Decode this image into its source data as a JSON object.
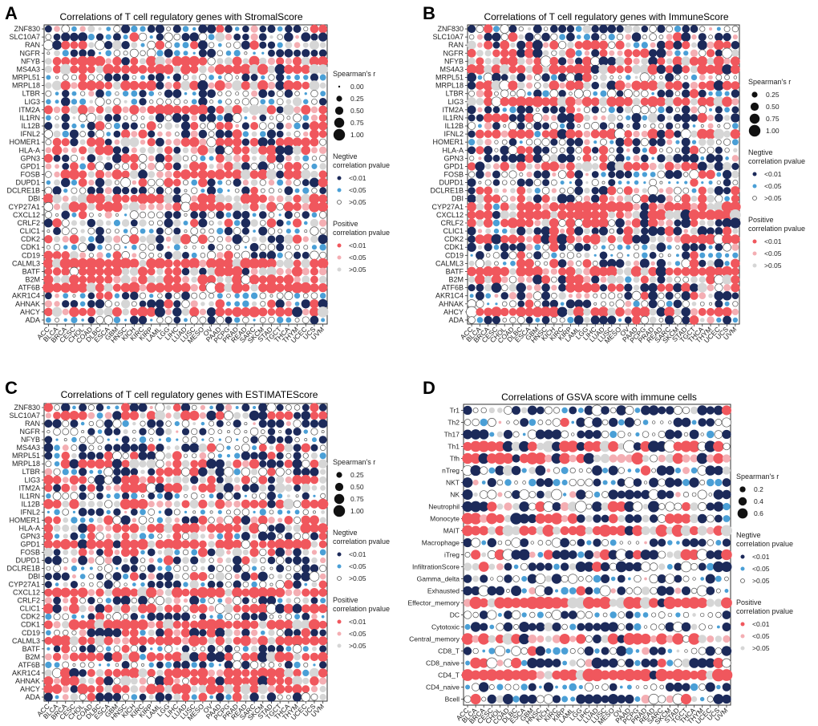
{
  "figure": {
    "panels": [
      {
        "letter": "A",
        "title": "Correlations of T cell regulatory genes with StromalScore"
      },
      {
        "letter": "B",
        "title": "Correlations of T cell regulatory genes with ImmuneScore"
      },
      {
        "letter": "C",
        "title": "Correlations of T cell regulatory genes with ESTIMATEScore"
      },
      {
        "letter": "D",
        "title": "Correlations of GSVA score with immune cells"
      }
    ],
    "legend": {
      "size_title": "Spearman's r",
      "neg_title_1": "Negtive",
      "neg_title_2": "correlation  pvalue",
      "pos_title_1": "Positive",
      "pos_title_2": "correlation  pvalue",
      "p_labels": [
        "<0.01",
        "<0.05",
        ">0.05"
      ]
    }
  },
  "chart_data": [
    {
      "type": "dotplot",
      "title": "Correlations of T cell regulatory genes with StromalScore",
      "x_categories": [
        "ACC",
        "BLCA",
        "BRCA",
        "CESC",
        "CHOL",
        "COAD",
        "DLBC",
        "ESCA",
        "GBM",
        "HNSC",
        "KICH",
        "KIRC",
        "KIRP",
        "LAML",
        "LGG",
        "LIHC",
        "LUAD",
        "LUSC",
        "MESO",
        "OV",
        "PAAD",
        "PCPG",
        "PRAD",
        "READ",
        "SARC",
        "SKCM",
        "STAD",
        "TGCT",
        "THCA",
        "THYM",
        "UCEC",
        "UCS",
        "UVM"
      ],
      "y_categories": [
        "ZNF830",
        "SLC10A7",
        "RAN",
        "NGFR",
        "NFYB",
        "MS4A3",
        "MRPL51",
        "MRPL18",
        "LTBR",
        "LIG3",
        "ITM2A",
        "IL1RN",
        "IL12B",
        "IFNL2",
        "HOMER1",
        "HLA-A",
        "GPN3",
        "GPD1",
        "FOSB",
        "DUPD1",
        "DCLRE1B",
        "DBI",
        "CYP27A1",
        "CXCL12",
        "CRLF2",
        "CLIC1",
        "CDK2",
        "CDK1",
        "CD19",
        "CALML3",
        "BATF",
        "B2M",
        "ATF6B",
        "AKR1C4",
        "AHNAK",
        "AHCY",
        "ADA"
      ],
      "size_breaks": [
        "0.00",
        "0.25",
        "0.50",
        "0.75",
        "1.00"
      ],
      "size_metric": "Spearman's r (absolute)",
      "color_encoding": "sign of correlation and p-value (<0.01, <0.05, >0.05)",
      "seed": 11
    },
    {
      "type": "dotplot",
      "title": "Correlations of T cell regulatory genes with ImmuneScore",
      "x_categories": [
        "ACC",
        "BLCA",
        "BRCA",
        "CESC",
        "CHOL",
        "COAD",
        "DLBC",
        "ESCA",
        "GBM",
        "HNSC",
        "KICH",
        "KIRC",
        "KIRP",
        "LAML",
        "LGG",
        "LIHC",
        "LUAD",
        "LUSC",
        "MESO",
        "OV",
        "PAAD",
        "PCPG",
        "PRAD",
        "READ",
        "SARC",
        "SKCM",
        "STAD",
        "TGCT",
        "THCA",
        "THYM",
        "UCEC",
        "UCS",
        "UVM"
      ],
      "y_categories": [
        "ZNF830",
        "SLC10A7",
        "RAN",
        "NGFR",
        "NFYB",
        "MS4A3",
        "MRPL51",
        "MRPL18",
        "LTBR",
        "LIG3",
        "ITM2A",
        "IL1RN",
        "IL12B",
        "IFNL2",
        "HOMER1",
        "HLA-A",
        "GPN3",
        "GPD1",
        "FOSB",
        "DUPD1",
        "DCLRE1B",
        "DBI",
        "CYP27A1",
        "CXCL12",
        "CRLF2",
        "CLIC1",
        "CDK2",
        "CDK1",
        "CD19",
        "CALML3",
        "BATF",
        "B2M",
        "ATF6B",
        "AKR1C4",
        "AHNAK",
        "AHCY",
        "ADA"
      ],
      "size_breaks": [
        "0.25",
        "0.50",
        "0.75",
        "1.00"
      ],
      "size_metric": "Spearman's r (absolute)",
      "color_encoding": "sign of correlation and p-value (<0.01, <0.05, >0.05)",
      "seed": 23
    },
    {
      "type": "dotplot",
      "title": "Correlations of T cell regulatory genes with ESTIMATEScore",
      "x_categories": [
        "ACC",
        "BLCA",
        "BRCA",
        "CESC",
        "CHOL",
        "COAD",
        "DLBC",
        "ESCA",
        "GBM",
        "HNSC",
        "KICH",
        "KIRC",
        "KIRP",
        "LAML",
        "LGG",
        "LIHC",
        "LUAD",
        "LUSC",
        "MESO",
        "OV",
        "PAAD",
        "PCPG",
        "PRAD",
        "READ",
        "SARC",
        "SKCM",
        "STAD",
        "TGCT",
        "THCA",
        "THYM",
        "UCEC",
        "UCS",
        "UVM"
      ],
      "y_categories": [
        "ZNF830",
        "SLC10A7",
        "RAN",
        "NGFR",
        "NFYB",
        "MS4A3",
        "MRPL51",
        "MRPL18",
        "LTBR",
        "LIG3",
        "ITM2A",
        "IL1RN",
        "IL12B",
        "IFNL2",
        "HOMER1",
        "HLA-A",
        "GPN3",
        "GPD1",
        "FOSB",
        "DUPD1",
        "DCLRE1B",
        "DBI",
        "CYP27A1",
        "CXCL12",
        "CRLF2",
        "CLIC1",
        "CDK2",
        "CDK1",
        "CD19",
        "CALML3",
        "BATF",
        "B2M",
        "ATF6B",
        "AKR1C4",
        "AHNAK",
        "AHCY",
        "ADA"
      ],
      "size_breaks": [
        "0.25",
        "0.50",
        "0.75",
        "1.00"
      ],
      "size_metric": "Spearman's r (absolute)",
      "color_encoding": "sign of correlation and p-value (<0.01, <0.05, >0.05)",
      "seed": 37
    },
    {
      "type": "dotplot",
      "title": "Correlations of GSVA score with immune cells",
      "x_categories": [
        "ACC",
        "BLCA",
        "BRCA",
        "CESC",
        "CHOL",
        "COAD",
        "DLBC",
        "ESCA",
        "GBM",
        "HNSC",
        "KICH",
        "KIRC",
        "KIRP",
        "LAML",
        "LGG",
        "LIHC",
        "LUAD",
        "LUSC",
        "MESO",
        "OV",
        "PAAD",
        "PCPG",
        "PRAD",
        "READ",
        "SARC",
        "SKCM",
        "STAD",
        "TGCT",
        "THCA",
        "THYM",
        "UCEC",
        "UCS",
        "UVM"
      ],
      "y_categories": [
        "Tr1",
        "Th2",
        "Th17",
        "Th1",
        "Tfh",
        "nTreg",
        "NKT",
        "NK",
        "Neutrophil",
        "Monocyte",
        "MAIT",
        "Macrophage",
        "iTreg",
        "InfiltrationScore",
        "Gamma_delta",
        "Exhausted",
        "Effector_memory",
        "DC",
        "Cytotoxic",
        "Central_memory",
        "CD8_T",
        "CD8_naive",
        "CD4_T",
        "CD4_naive",
        "Bcell"
      ],
      "size_breaks": [
        "0.2",
        "0.4",
        "0.6"
      ],
      "size_metric": "Spearman's r (absolute)",
      "color_encoding": "sign of correlation and p-value (<0.01, <0.05, >0.05)",
      "seed": 53
    }
  ],
  "colors": {
    "neg_strong": "#1c2a5a",
    "neg_mid": "#4a9fd6",
    "neg_weak_stroke": "#555555",
    "pos_strong": "#f0575d",
    "pos_mid": "#f4aeb3",
    "pos_weak": "#d6d6d6",
    "panel_bg": "#ffffff",
    "frame": "#333333"
  }
}
